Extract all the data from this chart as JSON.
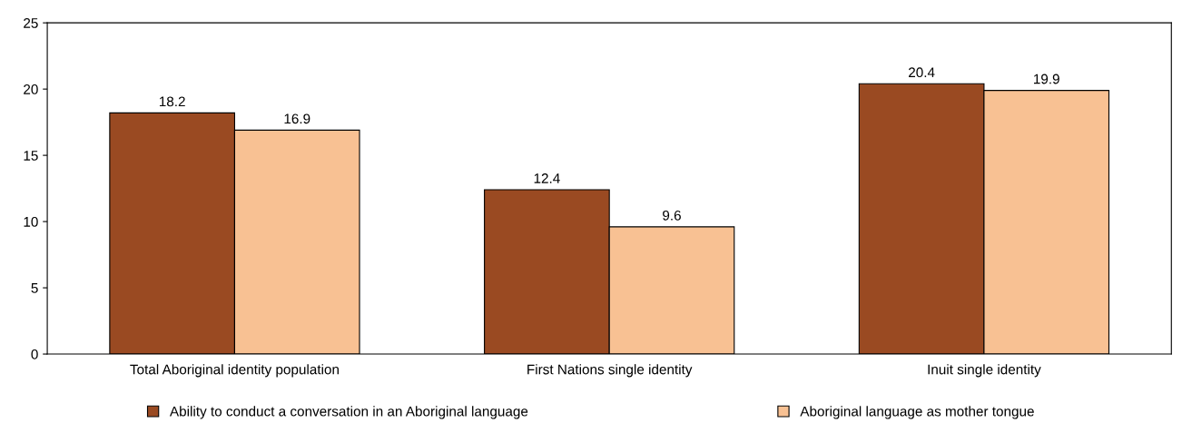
{
  "chart_data": {
    "type": "bar",
    "categories": [
      "Total Aboriginal identity population",
      "First Nations single identity",
      "Inuit single identity"
    ],
    "series": [
      {
        "name": "Ability to conduct a conversation in an Aboriginal language",
        "color": "#9a4a22",
        "values": [
          18.2,
          12.4,
          20.4
        ]
      },
      {
        "name": "Aboriginal language as mother tongue",
        "color": "#f8c193",
        "values": [
          16.9,
          9.6,
          19.9
        ]
      }
    ],
    "ylim": [
      0,
      25
    ],
    "yticks": [
      0,
      5,
      10,
      15,
      20,
      25
    ],
    "data_labels": true,
    "grid": false,
    "legend": "bottom"
  }
}
